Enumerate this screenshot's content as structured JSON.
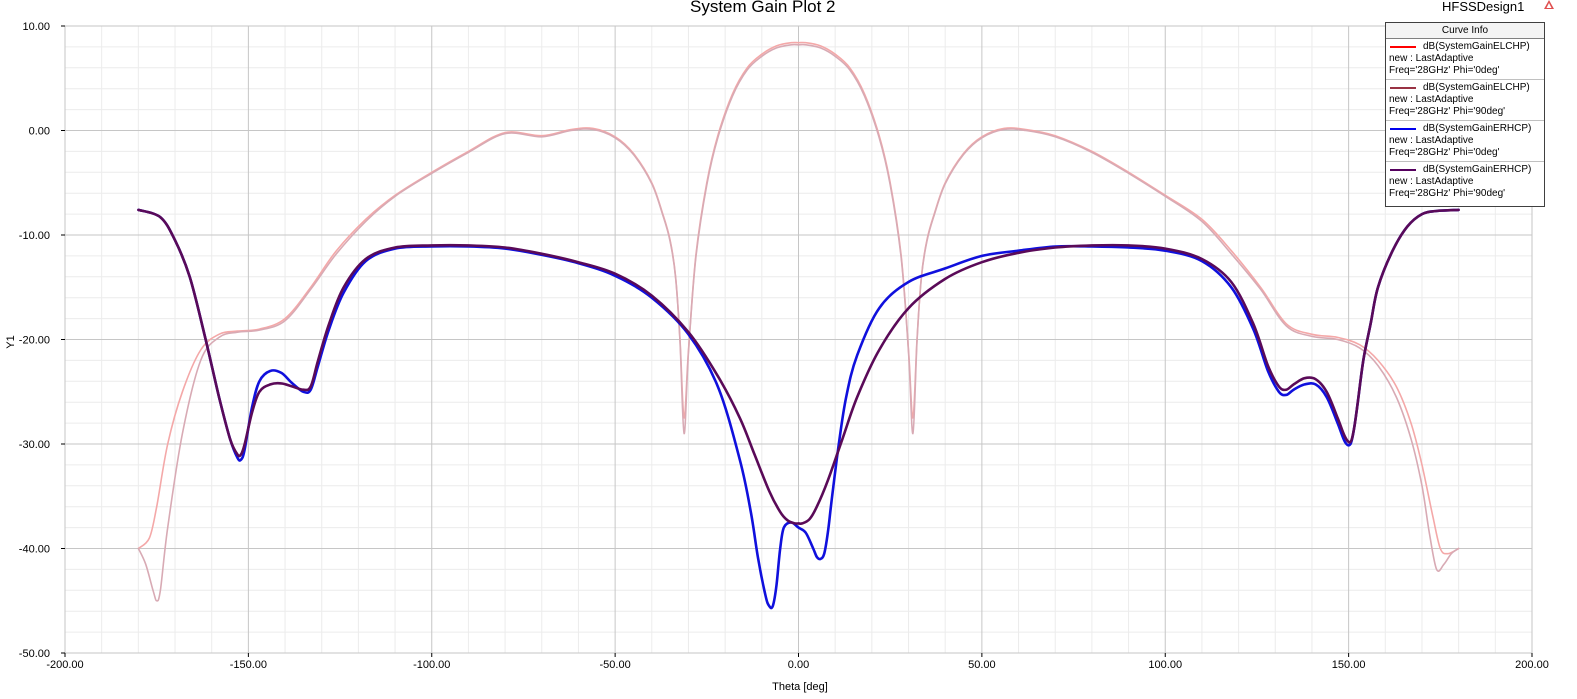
{
  "header": {
    "title": "System Gain Plot 2",
    "design_name": "HFSSDesign1",
    "design_icon": "hfss-logo-icon"
  },
  "legend": {
    "title": "Curve Info",
    "entries": [
      {
        "name": "dB(SystemGainELCHP)",
        "solution": "new : LastAdaptive",
        "sweep": "Freq='28GHz' Phi='0deg'",
        "color": "#ff0000"
      },
      {
        "name": "dB(SystemGainELCHP)",
        "solution": "new : LastAdaptive",
        "sweep": "Freq='28GHz' Phi='90deg'",
        "color": "#993344"
      },
      {
        "name": "dB(SystemGainERHCP)",
        "solution": "new : LastAdaptive",
        "sweep": "Freq='28GHz' Phi='0deg'",
        "color": "#0000ee"
      },
      {
        "name": "dB(SystemGainERHCP)",
        "solution": "new : LastAdaptive",
        "sweep": "Freq='28GHz' Phi='90deg'",
        "color": "#55005e"
      }
    ]
  },
  "chart_data": {
    "type": "line",
    "title": "System Gain Plot 2",
    "xlabel": "Theta [deg]",
    "ylabel": "Y1",
    "xlim": [
      -200,
      200
    ],
    "ylim": [
      -50,
      10
    ],
    "x_ticks": [
      "-200.00",
      "-150.00",
      "-100.00",
      "-50.00",
      "0.00",
      "50.00",
      "100.00",
      "150.00",
      "200.00"
    ],
    "y_ticks": [
      "10.00",
      "0.00",
      "-10.00",
      "-20.00",
      "-30.00",
      "-40.00",
      "-50.00"
    ],
    "x_tick_values": [
      -200,
      -150,
      -100,
      -50,
      0,
      50,
      100,
      150,
      200
    ],
    "y_tick_values": [
      10,
      0,
      -10,
      -20,
      -30,
      -40,
      -50
    ],
    "grid": true,
    "legend_position": "top-right",
    "series": [
      {
        "name": "dB(SystemGainELCHP) Freq='28GHz' Phi='0deg'",
        "color": "#f4a8a8",
        "width": 1.6,
        "x": [
          -180,
          -177,
          -175,
          -172,
          -168,
          -163,
          -158,
          -153,
          -147,
          -140,
          -133,
          -126,
          -118,
          -110,
          -100,
          -90,
          -80,
          -70,
          -62,
          -56,
          -50,
          -45,
          -40,
          -37,
          -35,
          -33.5,
          -32.3,
          -31.2,
          -30,
          -28,
          -25,
          -22,
          -18,
          -14,
          -10,
          -6,
          -2,
          0,
          2,
          6,
          10,
          14,
          18,
          22,
          25,
          28,
          30,
          31.2,
          32.3,
          33.5,
          35,
          37,
          40,
          45,
          50,
          56,
          62,
          70,
          80,
          90,
          100,
          110,
          118,
          126,
          133,
          140,
          147,
          153,
          158,
          163,
          167,
          170,
          173,
          175,
          177,
          180
        ],
        "y": [
          -40,
          -39,
          -36,
          -30,
          -25,
          -21,
          -19.5,
          -19.2,
          -19,
          -18,
          -15,
          -11.5,
          -8.5,
          -6.2,
          -4,
          -2,
          -0.2,
          -0.5,
          0.1,
          0.2,
          -0.6,
          -2.2,
          -5,
          -8,
          -10.5,
          -14,
          -20,
          -27.5,
          -21,
          -12,
          -5,
          -0.5,
          3.5,
          6,
          7.3,
          8.1,
          8.4,
          8.4,
          8.4,
          8.1,
          7.3,
          6,
          3.5,
          -0.5,
          -5,
          -12,
          -21,
          -27.5,
          -20,
          -14,
          -10.5,
          -8,
          -5,
          -2.2,
          -0.6,
          0.2,
          0.1,
          -0.5,
          -2,
          -4,
          -6.2,
          -8.5,
          -11.5,
          -15,
          -18.5,
          -19.5,
          -19.8,
          -20.5,
          -22,
          -24.5,
          -28,
          -32,
          -37,
          -40,
          -40.5,
          -40
        ]
      },
      {
        "name": "dB(SystemGainELCHP) Freq='28GHz' Phi='90deg'",
        "color": "#d8aab4",
        "width": 1.6,
        "x": [
          -180,
          -178,
          -176,
          -175,
          -174,
          -172,
          -168,
          -163,
          -158,
          -153,
          -147,
          -140,
          -133,
          -126,
          -118,
          -110,
          -100,
          -90,
          -80,
          -70,
          -62,
          -56,
          -50,
          -45,
          -40,
          -37,
          -35,
          -33.5,
          -32.3,
          -31.2,
          -30,
          -28,
          -25,
          -22,
          -18,
          -14,
          -10,
          -6,
          -2,
          0,
          2,
          6,
          10,
          14,
          18,
          22,
          25,
          28,
          30,
          31.2,
          32.3,
          33.5,
          35,
          37,
          40,
          45,
          50,
          56,
          62,
          70,
          80,
          90,
          100,
          110,
          118,
          126,
          133,
          140,
          147,
          153,
          158,
          163,
          167,
          170,
          172,
          174,
          176,
          178,
          180
        ],
        "y": [
          -40,
          -41.5,
          -44,
          -45,
          -44,
          -38,
          -29,
          -22,
          -19.8,
          -19.3,
          -19.1,
          -18.2,
          -15.2,
          -11.8,
          -8.7,
          -6.3,
          -4.1,
          -2.1,
          -0.3,
          -0.6,
          0,
          0.1,
          -0.7,
          -2.3,
          -5.1,
          -8.1,
          -10.6,
          -14.1,
          -20.2,
          -29,
          -21.2,
          -12.2,
          -5.2,
          -0.7,
          3.3,
          5.8,
          7.1,
          7.9,
          8.2,
          8.2,
          8.2,
          7.9,
          7.1,
          5.8,
          3.3,
          -0.7,
          -5.2,
          -12.2,
          -21.2,
          -29,
          -20.2,
          -14.1,
          -10.6,
          -8.1,
          -5.1,
          -2.3,
          -0.7,
          0.1,
          0,
          -0.6,
          -2.1,
          -4.1,
          -6.3,
          -8.7,
          -11.8,
          -15.2,
          -18.7,
          -19.7,
          -20,
          -20.8,
          -22.5,
          -25.5,
          -29.5,
          -34,
          -38.5,
          -42,
          -41.5,
          -40.5,
          -40
        ]
      },
      {
        "name": "dB(SystemGainERHCP) Freq='28GHz' Phi='0deg'",
        "color": "#1010dd",
        "width": 2.6,
        "x": [
          -180,
          -174,
          -170,
          -166,
          -162,
          -158,
          -155,
          -153,
          -152,
          -151,
          -149,
          -147,
          -144,
          -141,
          -138,
          -135,
          -133,
          -131,
          -128,
          -124,
          -118,
          -110,
          -100,
          -90,
          -80,
          -70,
          -60,
          -50,
          -40,
          -30,
          -22,
          -16,
          -13,
          -11,
          -9,
          -8,
          -7,
          -6,
          -5,
          -4,
          -2,
          0,
          2,
          4,
          5,
          6,
          7,
          8,
          9,
          11,
          13,
          16,
          22,
          30,
          40,
          50,
          60,
          70,
          80,
          90,
          100,
          110,
          118,
          124,
          128,
          131,
          133,
          135,
          138,
          141,
          144,
          147,
          149,
          150.5,
          151.5,
          152.5,
          154,
          156,
          158,
          162,
          166,
          170,
          174,
          180
        ],
        "y": [
          -7.6,
          -8.3,
          -10.5,
          -14,
          -19.5,
          -25.5,
          -29.5,
          -31.3,
          -31.5,
          -30.5,
          -26.5,
          -24,
          -23,
          -23.2,
          -24.2,
          -25,
          -24.8,
          -22.5,
          -19,
          -15.5,
          -12.5,
          -11.3,
          -11.1,
          -11.1,
          -11.3,
          -11.9,
          -12.7,
          -13.9,
          -16,
          -19.5,
          -24.5,
          -31.5,
          -36.5,
          -41,
          -44.5,
          -45.5,
          -45.5,
          -43.5,
          -40,
          -38,
          -37.5,
          -38,
          -38.5,
          -40,
          -40.8,
          -41,
          -40.5,
          -38.5,
          -35.5,
          -30,
          -25.5,
          -21.5,
          -17,
          -14.5,
          -13.2,
          -12,
          -11.5,
          -11.1,
          -11.1,
          -11.2,
          -11.5,
          -12.5,
          -15,
          -19,
          -23,
          -25,
          -25.3,
          -24.8,
          -24.3,
          -24.3,
          -25.5,
          -28,
          -29.8,
          -30,
          -28.5,
          -26,
          -22,
          -18.5,
          -15,
          -11.5,
          -9.2,
          -8,
          -7.7,
          -7.6
        ]
      },
      {
        "name": "dB(SystemGainERHCP) Freq='28GHz' Phi='90deg'",
        "color": "#5a0a58",
        "width": 2.6,
        "x": [
          -180,
          -174,
          -170,
          -166,
          -162,
          -158,
          -155,
          -153,
          -152,
          -151,
          -149,
          -147,
          -144,
          -141,
          -138,
          -135,
          -133,
          -131,
          -128,
          -124,
          -118,
          -110,
          -100,
          -90,
          -80,
          -70,
          -60,
          -50,
          -40,
          -30,
          -22,
          -16,
          -12,
          -8,
          -5,
          -3,
          -1,
          0,
          1,
          3,
          5,
          8,
          12,
          16,
          22,
          30,
          40,
          50,
          60,
          70,
          80,
          90,
          100,
          110,
          118,
          124,
          128,
          131,
          133,
          135,
          138,
          141,
          144,
          147,
          149,
          150.5,
          151.5,
          152.5,
          154,
          156,
          158,
          162,
          166,
          170,
          174,
          180
        ],
        "y": [
          -7.6,
          -8.3,
          -10.5,
          -14,
          -19.5,
          -25.5,
          -29.5,
          -31,
          -31,
          -30,
          -27,
          -25,
          -24.3,
          -24.2,
          -24.5,
          -24.8,
          -24.5,
          -22,
          -18.5,
          -15,
          -12.3,
          -11.2,
          -11,
          -11,
          -11.2,
          -11.8,
          -12.6,
          -13.7,
          -15.8,
          -19.3,
          -23.5,
          -27.5,
          -31,
          -34.5,
          -36.5,
          -37.3,
          -37.6,
          -37.6,
          -37.6,
          -37.2,
          -36,
          -33.5,
          -29.5,
          -25.5,
          -21,
          -17,
          -14.2,
          -12.6,
          -11.7,
          -11.2,
          -11,
          -11,
          -11.3,
          -12.3,
          -14.5,
          -18.5,
          -22.5,
          -24.5,
          -24.8,
          -24.3,
          -23.7,
          -23.8,
          -25,
          -27.5,
          -29.3,
          -29.8,
          -28.5,
          -26,
          -22,
          -18.5,
          -15,
          -11.5,
          -9.2,
          -8,
          -7.7,
          -7.6
        ]
      }
    ]
  }
}
